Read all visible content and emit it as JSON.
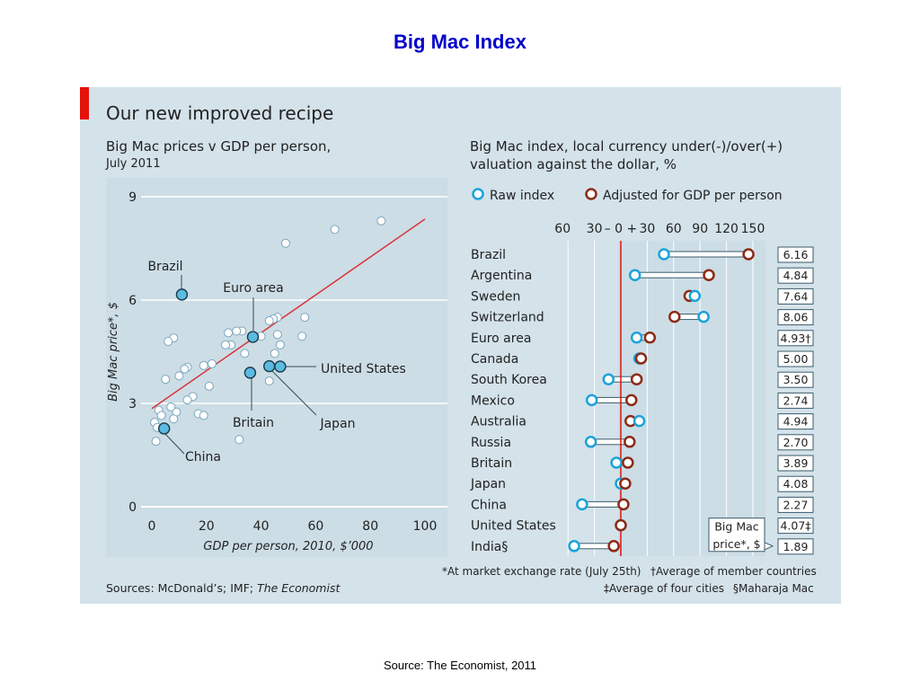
{
  "slide": {
    "title": "Big Mac Index",
    "source_caption": "Source: The Economist, 2011"
  },
  "figure": {
    "title": "Our new improved recipe",
    "sources_prefix": "Sources: McDonald’s; IMF; ",
    "sources_italic": "The Economist",
    "notes": {
      "star": "*At market exchange rate (July 25th)",
      "dagger": "†Average of member countries",
      "ddagger": "‡Average of four cities",
      "section": "§Maharaja Mac"
    },
    "colors": {
      "panel_bg": "#d4e2ea",
      "plot_bg": "#ccdde6",
      "red_accent": "#e3120b",
      "raw": "#1aa3d9",
      "adjusted": "#8b2b15",
      "point_fill": "#ffffff",
      "highlight_fill": "#5bbbe0"
    }
  },
  "chart_data": [
    {
      "type": "scatter",
      "title": "Big Mac prices v GDP per person,",
      "subtitle": "July 2011",
      "xlabel": "GDP per person, 2010, $’000",
      "ylabel": "Big Mac price*, $",
      "xlim": [
        -3,
        105
      ],
      "ylim": [
        0,
        9
      ],
      "xticks": [
        0,
        20,
        40,
        60,
        80,
        100
      ],
      "yticks": [
        0,
        3,
        6,
        9
      ],
      "grid": "horizontal",
      "trendline": {
        "x": [
          0,
          100
        ],
        "y": [
          2.85,
          8.35
        ]
      },
      "points": [
        {
          "x": 84,
          "y": 8.3
        },
        {
          "x": 67,
          "y": 8.05
        },
        {
          "x": 49,
          "y": 7.65
        },
        {
          "x": 56,
          "y": 5.5
        },
        {
          "x": 46,
          "y": 5.5
        },
        {
          "x": 44.5,
          "y": 5.45
        },
        {
          "x": 43,
          "y": 5.4
        },
        {
          "x": 33,
          "y": 5.1
        },
        {
          "x": 31,
          "y": 5.1
        },
        {
          "x": 28,
          "y": 5.05
        },
        {
          "x": 46,
          "y": 5.0
        },
        {
          "x": 40,
          "y": 4.95
        },
        {
          "x": 55,
          "y": 4.95
        },
        {
          "x": 8,
          "y": 4.9
        },
        {
          "x": 6,
          "y": 4.8
        },
        {
          "x": 29,
          "y": 4.7
        },
        {
          "x": 47,
          "y": 4.7
        },
        {
          "x": 27,
          "y": 4.7
        },
        {
          "x": 34,
          "y": 4.45
        },
        {
          "x": 45,
          "y": 4.45
        },
        {
          "x": 22,
          "y": 4.15
        },
        {
          "x": 19,
          "y": 4.1
        },
        {
          "x": 13,
          "y": 4.05
        },
        {
          "x": 12,
          "y": 4.0
        },
        {
          "x": 10,
          "y": 3.8
        },
        {
          "x": 5,
          "y": 3.7
        },
        {
          "x": 43,
          "y": 3.65
        },
        {
          "x": 21,
          "y": 3.5
        },
        {
          "x": 15,
          "y": 3.2
        },
        {
          "x": 13,
          "y": 3.1
        },
        {
          "x": 17,
          "y": 2.7
        },
        {
          "x": 19,
          "y": 2.65
        },
        {
          "x": 9,
          "y": 2.75
        },
        {
          "x": 2.5,
          "y": 2.8
        },
        {
          "x": 7,
          "y": 2.9
        },
        {
          "x": 3.5,
          "y": 2.65
        },
        {
          "x": 8,
          "y": 2.55
        },
        {
          "x": 1,
          "y": 2.45
        },
        {
          "x": 2,
          "y": 2.3
        },
        {
          "x": 32,
          "y": 1.95
        },
        {
          "x": 1.5,
          "y": 1.9
        }
      ],
      "highlighted": [
        {
          "label": "Brazil",
          "x": 11,
          "y": 6.16
        },
        {
          "label": "Euro area",
          "x": 37,
          "y": 4.93
        },
        {
          "label": "United States",
          "x": 47,
          "y": 4.07
        },
        {
          "label": "Japan",
          "x": 43,
          "y": 4.08
        },
        {
          "label": "Britain",
          "x": 36,
          "y": 3.89
        },
        {
          "label": "China",
          "x": 4.5,
          "y": 2.27
        }
      ]
    },
    {
      "type": "dot-range",
      "title": "Big Mac index, local currency under(-)/over(+)",
      "title_line2": "valuation against the dollar, %",
      "legend": {
        "raw": "Raw index",
        "adjusted": "Adjusted for GDP per person",
        "position": "top"
      },
      "axis_ticks": [
        {
          "label": "60",
          "v": -60
        },
        {
          "label": "30",
          "v": -30
        },
        {
          "label": "– 0 +",
          "v": 0
        },
        {
          "label": "30",
          "v": 30
        },
        {
          "label": "60",
          "v": 60
        },
        {
          "label": "90",
          "v": 90
        },
        {
          "label": "120",
          "v": 120
        },
        {
          "label": "150",
          "v": 150
        }
      ],
      "price_box_label_line1": "Big Mac",
      "price_box_label_line2": "price*, $",
      "countries": [
        {
          "name": "Brazil",
          "raw": 49,
          "adjusted": 145,
          "price": "6.16"
        },
        {
          "name": "Argentina",
          "raw": 16,
          "adjusted": 100,
          "price": "4.84"
        },
        {
          "name": "Sweden",
          "raw": 84,
          "adjusted": 78,
          "price": "7.64"
        },
        {
          "name": "Switzerland",
          "raw": 94,
          "adjusted": 61,
          "price": "8.06"
        },
        {
          "name": "Euro area",
          "raw": 18,
          "adjusted": 33,
          "price": "4.93†"
        },
        {
          "name": "Canada",
          "raw": 21,
          "adjusted": 23,
          "price": "5.00"
        },
        {
          "name": "South Korea",
          "raw": -14,
          "adjusted": 18,
          "price": "3.50"
        },
        {
          "name": "Mexico",
          "raw": -33,
          "adjusted": 12,
          "price": "2.74"
        },
        {
          "name": "Australia",
          "raw": 21,
          "adjusted": 11,
          "price": "4.94"
        },
        {
          "name": "Russia",
          "raw": -34,
          "adjusted": 10,
          "price": "2.70"
        },
        {
          "name": "Britain",
          "raw": -5,
          "adjusted": 8,
          "price": "3.89"
        },
        {
          "name": "Japan",
          "raw": 0,
          "adjusted": 5,
          "price": "4.08"
        },
        {
          "name": "China",
          "raw": -44,
          "adjusted": 3,
          "price": "2.27"
        },
        {
          "name": "United States",
          "raw": 0,
          "adjusted": 0,
          "price": "4.07‡"
        },
        {
          "name": "India§",
          "raw": -53,
          "adjusted": -8,
          "price": "1.89"
        }
      ]
    }
  ]
}
